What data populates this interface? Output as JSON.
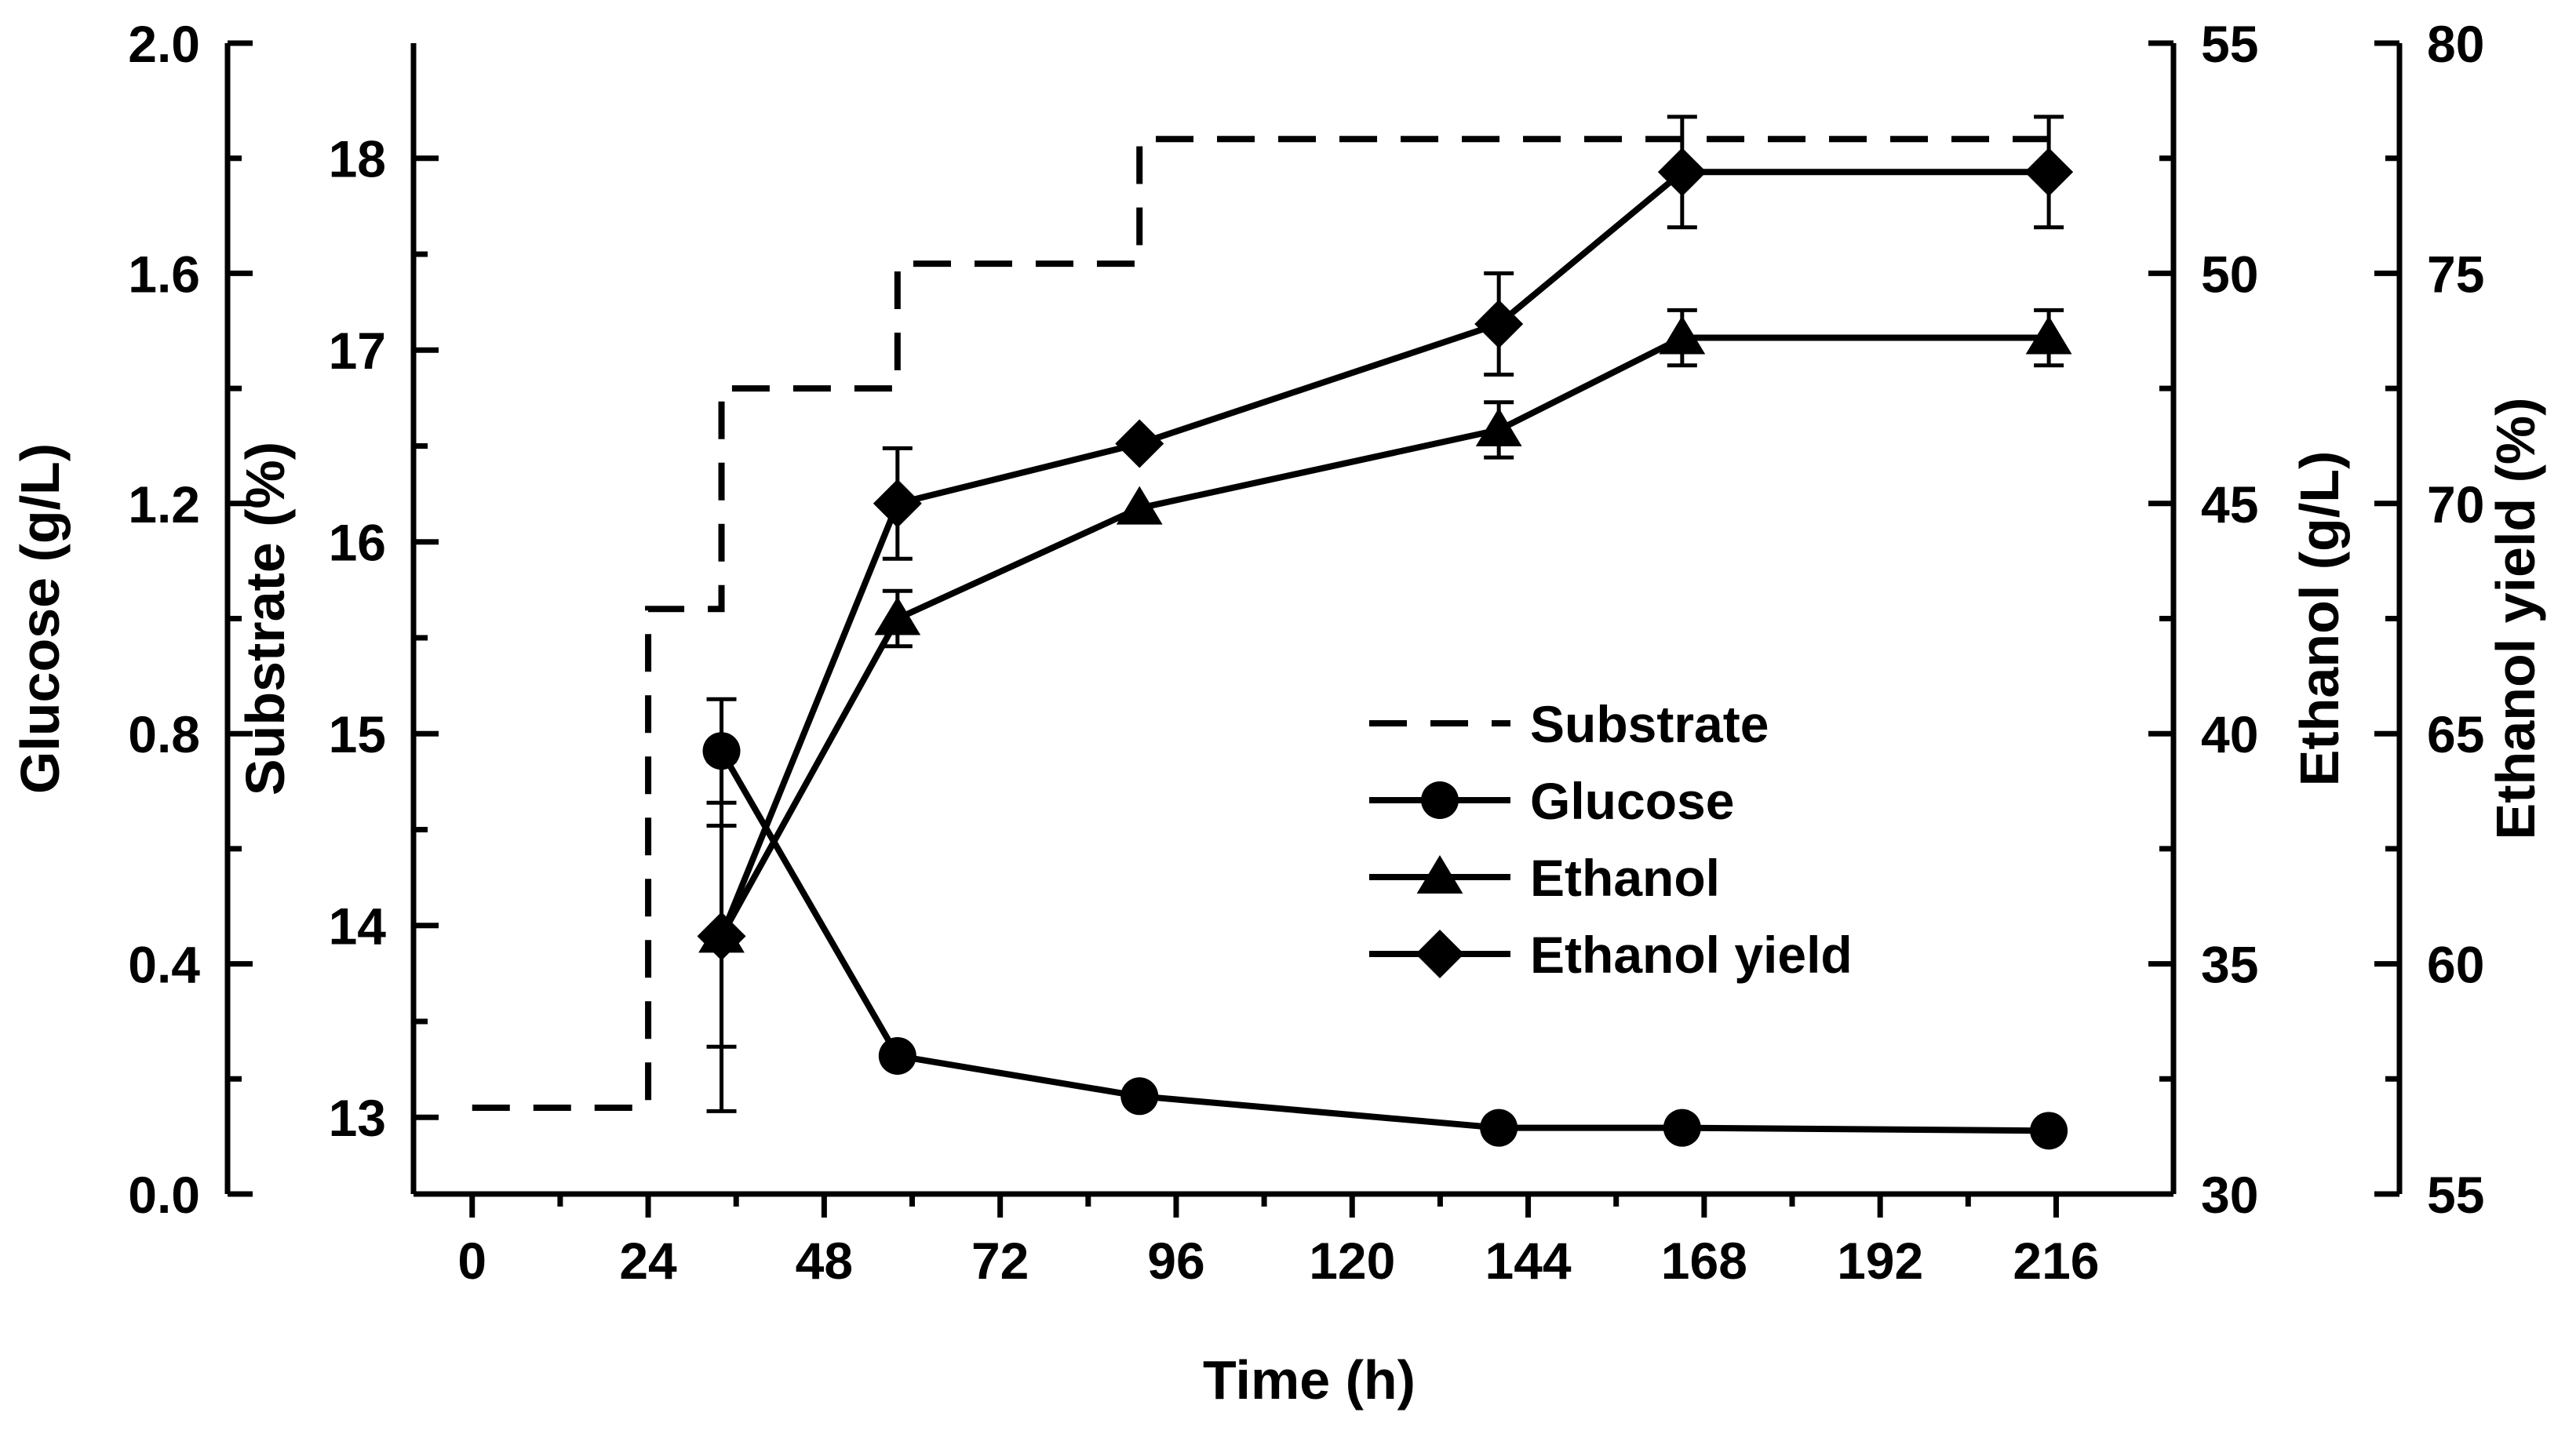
{
  "chart_data": {
    "type": "line",
    "xlabel": "Time (h)",
    "xlim": [
      -8,
      232
    ],
    "xticks": [
      0,
      24,
      48,
      72,
      96,
      120,
      144,
      168,
      192,
      216
    ],
    "axes": {
      "glucose": {
        "label": "Glucose (g/L)",
        "lim": [
          0.0,
          2.0
        ],
        "ticks": [
          "0.0",
          "0.4",
          "0.8",
          "1.2",
          "1.6",
          "2.0"
        ]
      },
      "substrate": {
        "label": "Substrate (%)",
        "lim": [
          12.6,
          18.6
        ],
        "ticks": [
          "13",
          "14",
          "15",
          "16",
          "17",
          "18"
        ]
      },
      "ethanol": {
        "label": "Ethanol (g/L)",
        "lim": [
          30,
          55
        ],
        "ticks": [
          "30",
          "35",
          "40",
          "45",
          "50",
          "55"
        ]
      },
      "yield": {
        "label": "Ethanol yield (%)",
        "lim": [
          55,
          80
        ],
        "ticks": [
          "55",
          "60",
          "65",
          "70",
          "75",
          "80"
        ]
      }
    },
    "series": [
      {
        "name": "Substrate",
        "axis": "substrate",
        "style": "dashed-step",
        "x": [
          0,
          24,
          24,
          34,
          34,
          58,
          58,
          91,
          91,
          216
        ],
        "y": [
          13.05,
          13.05,
          15.65,
          15.65,
          16.8,
          16.8,
          17.45,
          17.45,
          18.1,
          18.1
        ]
      },
      {
        "name": "Glucose",
        "axis": "glucose",
        "marker": "circle",
        "x": [
          34,
          58,
          91,
          140,
          165,
          215
        ],
        "y": [
          0.77,
          0.24,
          0.17,
          0.115,
          0.115,
          0.11
        ],
        "err": [
          0.09,
          0.0,
          0.0,
          0.0,
          0.0,
          0.0
        ]
      },
      {
        "name": "Ethanol",
        "axis": "ethanol",
        "marker": "triangle",
        "x": [
          34,
          58,
          91,
          140,
          165,
          215
        ],
        "y": [
          35.6,
          42.5,
          44.9,
          46.6,
          48.6,
          48.6
        ],
        "err": [
          2.4,
          0.6,
          0.0,
          0.6,
          0.6,
          0.6
        ]
      },
      {
        "name": "Ethanol yield",
        "axis": "yield",
        "marker": "diamond",
        "x": [
          34,
          58,
          91,
          140,
          165,
          215
        ],
        "y": [
          60.6,
          70.0,
          71.3,
          73.9,
          77.2,
          77.2
        ],
        "err": [
          3.8,
          1.2,
          0.0,
          1.1,
          1.2,
          1.2
        ]
      }
    ],
    "legend": {
      "position": "center-right",
      "entries": [
        "Substrate",
        "Glucose",
        "Ethanol",
        "Ethanol yield"
      ]
    }
  }
}
